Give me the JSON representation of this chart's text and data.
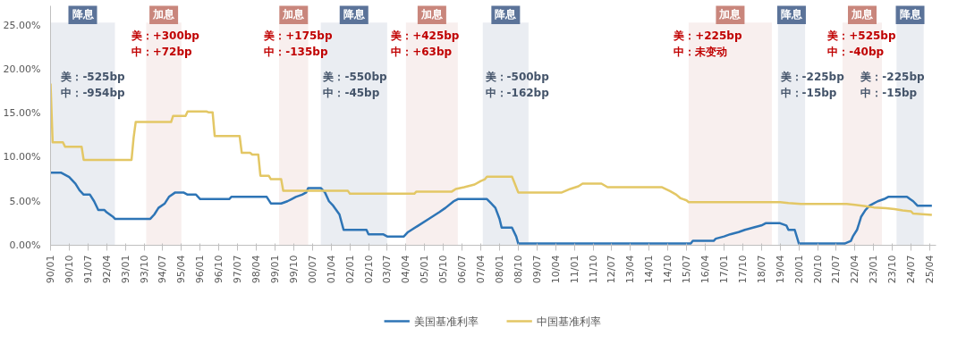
{
  "chart_data": {
    "type": "line",
    "xlim": [
      "1990-01",
      "2025-07"
    ],
    "ylim": [
      0,
      27.2
    ],
    "xticks": [
      {
        "value": "1990-01",
        "label": "90/01"
      },
      {
        "value": "1990-10",
        "label": "90/10"
      },
      {
        "value": "1991-07",
        "label": "91/07"
      },
      {
        "value": "1992-04",
        "label": "92/04"
      },
      {
        "value": "1993-01",
        "label": "93/01"
      },
      {
        "value": "1993-10",
        "label": "93/10"
      },
      {
        "value": "1994-07",
        "label": "94/07"
      },
      {
        "value": "1995-04",
        "label": "95/04"
      },
      {
        "value": "1996-01",
        "label": "96/01"
      },
      {
        "value": "1996-10",
        "label": "96/10"
      },
      {
        "value": "1997-07",
        "label": "97/07"
      },
      {
        "value": "1998-04",
        "label": "98/04"
      },
      {
        "value": "1999-01",
        "label": "99/01"
      },
      {
        "value": "1999-10",
        "label": "99/10"
      },
      {
        "value": "2000-07",
        "label": "00/07"
      },
      {
        "value": "2001-04",
        "label": "01/04"
      },
      {
        "value": "2002-01",
        "label": "02/01"
      },
      {
        "value": "2002-10",
        "label": "02/10"
      },
      {
        "value": "2003-07",
        "label": "03/07"
      },
      {
        "value": "2004-04",
        "label": "04/04"
      },
      {
        "value": "2005-01",
        "label": "05/01"
      },
      {
        "value": "2005-10",
        "label": "05/10"
      },
      {
        "value": "2006-07",
        "label": "06/07"
      },
      {
        "value": "2007-04",
        "label": "07/04"
      },
      {
        "value": "2008-01",
        "label": "08/01"
      },
      {
        "value": "2008-10",
        "label": "08/10"
      },
      {
        "value": "2009-07",
        "label": "09/07"
      },
      {
        "value": "2010-04",
        "label": "10/04"
      },
      {
        "value": "2011-01",
        "label": "11/01"
      },
      {
        "value": "2011-10",
        "label": "11/10"
      },
      {
        "value": "2012-07",
        "label": "12/07"
      },
      {
        "value": "2013-04",
        "label": "13/04"
      },
      {
        "value": "2014-01",
        "label": "14/01"
      },
      {
        "value": "2014-10",
        "label": "14/10"
      },
      {
        "value": "2015-07",
        "label": "15/07"
      },
      {
        "value": "2016-04",
        "label": "16/04"
      },
      {
        "value": "2017-01",
        "label": "17/01"
      },
      {
        "value": "2017-10",
        "label": "17/10"
      },
      {
        "value": "2018-07",
        "label": "18/07"
      },
      {
        "value": "2019-04",
        "label": "19/04"
      },
      {
        "value": "2020-01",
        "label": "20/01"
      },
      {
        "value": "2020-10",
        "label": "20/10"
      },
      {
        "value": "2021-07",
        "label": "21/07"
      },
      {
        "value": "2022-04",
        "label": "22/04"
      },
      {
        "value": "2023-01",
        "label": "23/01"
      },
      {
        "value": "2023-10",
        "label": "23/10"
      },
      {
        "value": "2024-07",
        "label": "24/07"
      },
      {
        "value": "2025-04",
        "label": "25/04"
      }
    ],
    "yticks": [
      {
        "value": 0,
        "label": "0.00%"
      },
      {
        "value": 5,
        "label": "5.00%"
      },
      {
        "value": 10,
        "label": "10.00%"
      },
      {
        "value": 15,
        "label": "15.00%"
      },
      {
        "value": 20,
        "label": "20.00%"
      },
      {
        "value": 25,
        "label": "25.00%"
      }
    ],
    "grid": false,
    "legend": "bottom",
    "marker": "none",
    "line_style": "solid",
    "series": [
      {
        "name": "美国基准利率",
        "color": "#2e75b6",
        "x": [
          "1990-01",
          "1990-06",
          "1990-08",
          "1990-10",
          "1991-01",
          "1991-03",
          "1991-05",
          "1991-08",
          "1991-10",
          "1991-12",
          "1992-03",
          "1992-04",
          "1992-07",
          "1992-08",
          "1994-01",
          "1994-03",
          "1994-05",
          "1994-08",
          "1994-10",
          "1995-01",
          "1995-05",
          "1995-07",
          "1995-11",
          "1996-01",
          "1997-03",
          "1997-04",
          "1998-09",
          "1998-11",
          "1999-04",
          "1999-07",
          "1999-09",
          "1999-11",
          "2000-02",
          "2000-04",
          "2000-05",
          "2000-11",
          "2001-01",
          "2001-03",
          "2001-05",
          "2001-08",
          "2001-10",
          "2002-09",
          "2002-10",
          "2003-05",
          "2003-07",
          "2004-03",
          "2004-05",
          "2004-10",
          "2005-03",
          "2005-08",
          "2005-11",
          "2006-03",
          "2006-05",
          "2007-07",
          "2007-09",
          "2007-11",
          "2008-01",
          "2008-02",
          "2008-07",
          "2008-09",
          "2008-10",
          "2015-09",
          "2015-10",
          "2016-08",
          "2016-09",
          "2017-01",
          "2017-04",
          "2017-08",
          "2017-11",
          "2018-03",
          "2018-07",
          "2018-09",
          "2019-04",
          "2019-07",
          "2019-08",
          "2019-11",
          "2020-01",
          "2021-11",
          "2022-02",
          "2022-03",
          "2022-05",
          "2022-06",
          "2022-07",
          "2022-09",
          "2022-11",
          "2023-01",
          "2023-03",
          "2023-06",
          "2023-08",
          "2024-05",
          "2024-08",
          "2024-10",
          "2025-05"
        ],
        "values": [
          8.25,
          8.25,
          8.0,
          7.75,
          7.0,
          6.25,
          5.75,
          5.75,
          5.0,
          4.0,
          4.0,
          3.75,
          3.25,
          3.0,
          3.0,
          3.5,
          4.25,
          4.75,
          5.5,
          6.0,
          6.0,
          5.75,
          5.75,
          5.25,
          5.25,
          5.5,
          5.5,
          4.75,
          4.75,
          5.0,
          5.25,
          5.5,
          5.75,
          6.0,
          6.5,
          6.5,
          6.0,
          5.0,
          4.5,
          3.5,
          1.75,
          1.75,
          1.25,
          1.25,
          1.0,
          1.0,
          1.5,
          2.25,
          3.0,
          3.75,
          4.25,
          5.0,
          5.25,
          5.25,
          4.75,
          4.25,
          3.0,
          2.0,
          2.0,
          1.0,
          0.2,
          0.2,
          0.5,
          0.5,
          0.75,
          1.0,
          1.25,
          1.5,
          1.75,
          2.0,
          2.25,
          2.5,
          2.5,
          2.25,
          1.75,
          1.75,
          0.2,
          0.2,
          0.5,
          1.0,
          1.75,
          2.5,
          3.25,
          4.0,
          4.5,
          4.75,
          5.0,
          5.25,
          5.5,
          5.5,
          5.0,
          4.5,
          4.5
        ]
      },
      {
        "name": "中国基准利率",
        "color": "#e3c765",
        "x": [
          "1990-01",
          "1990-02",
          "1990-07",
          "1990-08",
          "1991-04",
          "1991-05",
          "1993-04",
          "1993-05",
          "1993-06",
          "1994-11",
          "1994-12",
          "1995-06",
          "1995-07",
          "1996-04",
          "1996-05",
          "1996-07",
          "1996-08",
          "1997-08",
          "1997-09",
          "1998-01",
          "1998-02",
          "1998-05",
          "1998-06",
          "1998-10",
          "1998-11",
          "1999-04",
          "1999-05",
          "2001-12",
          "2002-01",
          "2004-08",
          "2004-09",
          "2006-02",
          "2006-04",
          "2006-08",
          "2007-01",
          "2007-04",
          "2007-06",
          "2007-07",
          "2008-07",
          "2008-08",
          "2008-10",
          "2010-07",
          "2010-11",
          "2011-03",
          "2011-05",
          "2012-02",
          "2012-05",
          "2014-07",
          "2014-11",
          "2015-02",
          "2015-04",
          "2015-07",
          "2015-08",
          "2019-04",
          "2019-08",
          "2020-02",
          "2021-12",
          "2022-04",
          "2022-09",
          "2023-01",
          "2023-07",
          "2023-11",
          "2024-03",
          "2024-07",
          "2024-08",
          "2025-05"
        ],
        "values": [
          18.36,
          11.7,
          11.7,
          11.2,
          11.2,
          9.7,
          9.7,
          12.2,
          14.0,
          14.0,
          14.7,
          14.7,
          15.2,
          15.2,
          15.1,
          15.1,
          12.4,
          12.4,
          10.5,
          10.5,
          10.3,
          10.3,
          7.9,
          7.9,
          7.5,
          7.5,
          6.2,
          6.2,
          5.85,
          5.85,
          6.1,
          6.1,
          6.4,
          6.6,
          6.9,
          7.3,
          7.5,
          7.8,
          7.8,
          7.2,
          6.0,
          6.0,
          6.4,
          6.7,
          7.0,
          7.0,
          6.6,
          6.6,
          6.15,
          5.75,
          5.35,
          5.1,
          4.9,
          4.9,
          4.8,
          4.7,
          4.7,
          4.6,
          4.45,
          4.3,
          4.2,
          4.1,
          3.95,
          3.85,
          3.6,
          3.45
        ]
      }
    ],
    "bands": [
      {
        "axis": "x",
        "from": "1990-01",
        "to": "1992-08",
        "label": "降息",
        "color": "#5b7399"
      },
      {
        "axis": "x",
        "from": "1993-11",
        "to": "1995-04",
        "label": "加息",
        "color": "#c9867c"
      },
      {
        "axis": "x",
        "from": "1999-03",
        "to": "2000-05",
        "label": "加息",
        "color": "#c9867c"
      },
      {
        "axis": "x",
        "from": "2000-11",
        "to": "2003-07",
        "label": "降息",
        "color": "#5b7399"
      },
      {
        "axis": "x",
        "from": "2004-04",
        "to": "2006-05",
        "label": "加息",
        "color": "#c9867c"
      },
      {
        "axis": "x",
        "from": "2007-05",
        "to": "2009-03",
        "label": "降息",
        "color": "#5b7399"
      },
      {
        "axis": "x",
        "from": "2015-08",
        "to": "2018-12",
        "label": "加息",
        "color": "#c9867c"
      },
      {
        "axis": "x",
        "from": "2019-03",
        "to": "2020-04",
        "label": "降息",
        "color": "#5b7399"
      },
      {
        "axis": "x",
        "from": "2021-10",
        "to": "2023-05",
        "label": "加息",
        "color": "#c9867c"
      },
      {
        "axis": "x",
        "from": "2023-12",
        "to": "2025-01",
        "label": "降息",
        "color": "#5b7399"
      }
    ],
    "annotations": [
      "美：-525bp\n中：-954bp",
      "美：+300bp\n中：+72bp",
      "美：+175bp\n中：-135bp",
      "美：-550bp\n中：-45bp",
      "美：+425bp\n中：+63bp",
      "美：-500bp\n中：-162bp",
      "美：+225bp\n中：未变动",
      "美：-225bp\n中：-15bp",
      "美：+525bp\n中：-40bp",
      "美：-225bp\n中：-15bp"
    ]
  }
}
